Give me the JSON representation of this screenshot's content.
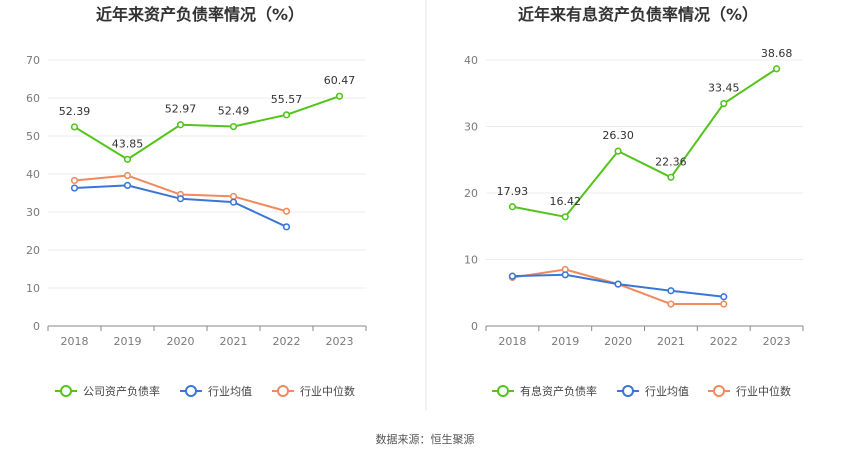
{
  "source_text": "数据来源：恒生聚源",
  "chart_data": [
    {
      "type": "line",
      "title": "近年来资产负债率情况（%）",
      "categories": [
        "2018",
        "2019",
        "2020",
        "2021",
        "2022",
        "2023"
      ],
      "ylim": [
        0,
        70
      ],
      "yticks": [
        0,
        10,
        20,
        30,
        40,
        50,
        60,
        70
      ],
      "grid": true,
      "legend_position": "bottom",
      "series": [
        {
          "name": "公司资产负债率",
          "color": "#52c41a",
          "values": [
            52.39,
            43.85,
            52.97,
            52.49,
            55.57,
            60.47
          ],
          "labeled": true
        },
        {
          "name": "行业均值",
          "color": "#3a76d8",
          "values": [
            36.3,
            37.0,
            33.5,
            32.6,
            26.1,
            null
          ],
          "labeled": false
        },
        {
          "name": "行业中位数",
          "color": "#f08a5d",
          "values": [
            38.3,
            39.6,
            34.6,
            34.1,
            30.2,
            null
          ],
          "labeled": false
        }
      ]
    },
    {
      "type": "line",
      "title": "近年来有息资产负债率情况（%）",
      "categories": [
        "2018",
        "2019",
        "2020",
        "2021",
        "2022",
        "2023"
      ],
      "ylim": [
        0,
        40
      ],
      "yticks": [
        0,
        10,
        20,
        30,
        40
      ],
      "grid": true,
      "legend_position": "bottom",
      "series": [
        {
          "name": "有息资产负债率",
          "color": "#52c41a",
          "values": [
            17.93,
            16.42,
            26.3,
            22.36,
            33.45,
            38.68
          ],
          "labeled": true
        },
        {
          "name": "行业均值",
          "color": "#3a76d8",
          "values": [
            7.5,
            7.7,
            6.3,
            5.3,
            4.4,
            null
          ],
          "labeled": false
        },
        {
          "name": "行业中位数",
          "color": "#f08a5d",
          "values": [
            7.3,
            8.5,
            6.3,
            3.3,
            3.3,
            null
          ],
          "labeled": false
        }
      ]
    }
  ]
}
